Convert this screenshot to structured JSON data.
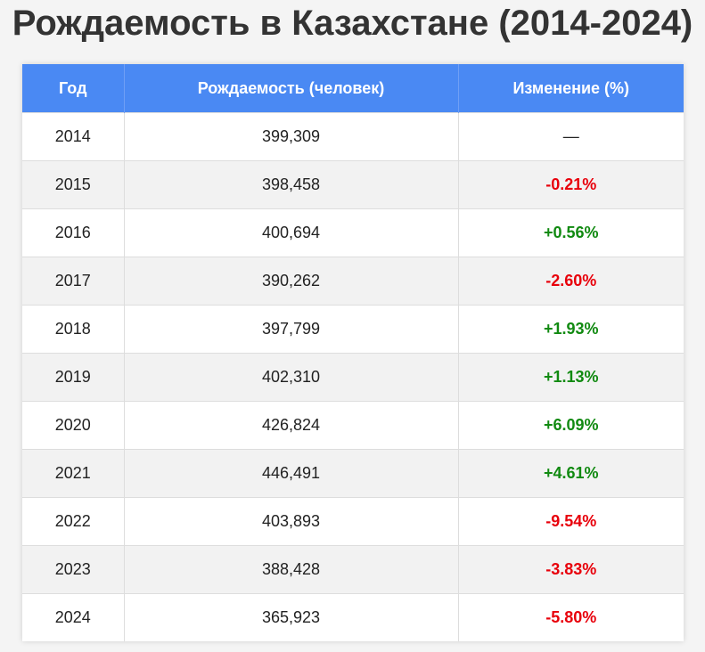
{
  "title": "Рождаемость в Казахстане (2014-2024)",
  "colors": {
    "header_bg": "#4a89f3",
    "negative": "#e8000b",
    "positive": "#118a11",
    "title": "#333333"
  },
  "table": {
    "headers": [
      "Год",
      "Рождаемость (человек)",
      "Изменение (%)"
    ],
    "rows": [
      {
        "year": "2014",
        "births": "399,309",
        "change": "—",
        "trend": "none"
      },
      {
        "year": "2015",
        "births": "398,458",
        "change": "-0.21%",
        "trend": "neg"
      },
      {
        "year": "2016",
        "births": "400,694",
        "change": "+0.56%",
        "trend": "pos"
      },
      {
        "year": "2017",
        "births": "390,262",
        "change": "-2.60%",
        "trend": "neg"
      },
      {
        "year": "2018",
        "births": "397,799",
        "change": "+1.93%",
        "trend": "pos"
      },
      {
        "year": "2019",
        "births": "402,310",
        "change": "+1.13%",
        "trend": "pos"
      },
      {
        "year": "2020",
        "births": "426,824",
        "change": "+6.09%",
        "trend": "pos"
      },
      {
        "year": "2021",
        "births": "446,491",
        "change": "+4.61%",
        "trend": "pos"
      },
      {
        "year": "2022",
        "births": "403,893",
        "change": "-9.54%",
        "trend": "neg"
      },
      {
        "year": "2023",
        "births": "388,428",
        "change": "-3.83%",
        "trend": "neg"
      },
      {
        "year": "2024",
        "births": "365,923",
        "change": "-5.80%",
        "trend": "neg"
      }
    ]
  }
}
